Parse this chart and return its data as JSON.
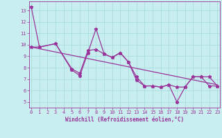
{
  "title": "",
  "xlabel": "Windchill (Refroidissement éolien,°C)",
  "bg_color": "#c8eef0",
  "grid_color": "#aadddd",
  "line_color": "#993399",
  "x_ticks": [
    0,
    1,
    2,
    3,
    4,
    5,
    6,
    7,
    8,
    9,
    10,
    11,
    12,
    13,
    14,
    15,
    16,
    17,
    18,
    19,
    20,
    21,
    22,
    23
  ],
  "y_ticks": [
    5,
    6,
    7,
    8,
    9,
    10,
    11,
    12,
    13
  ],
  "xlim": [
    -0.3,
    23.3
  ],
  "ylim": [
    4.5,
    13.8
  ],
  "line1_x": [
    0,
    1,
    3,
    5,
    6,
    7,
    8,
    9,
    10,
    11,
    12,
    13,
    14,
    15,
    16,
    17,
    18,
    19,
    20,
    21,
    22,
    23
  ],
  "line1_y": [
    13.3,
    9.8,
    10.1,
    7.8,
    7.3,
    9.3,
    11.4,
    9.2,
    8.9,
    9.3,
    8.5,
    6.9,
    6.4,
    6.4,
    6.3,
    6.5,
    5.0,
    6.3,
    7.2,
    7.2,
    6.4,
    6.4
  ],
  "line2_x": [
    0,
    1,
    3,
    5,
    6,
    7,
    8,
    9,
    10,
    11,
    12,
    13,
    14,
    15,
    16,
    17,
    18,
    19,
    20,
    21,
    22,
    23
  ],
  "line2_y": [
    9.8,
    9.8,
    10.1,
    7.9,
    7.5,
    9.5,
    9.6,
    9.2,
    8.9,
    9.3,
    8.5,
    7.2,
    6.4,
    6.4,
    6.3,
    6.5,
    6.3,
    6.3,
    7.2,
    7.2,
    7.2,
    6.4
  ],
  "trend_x": [
    0,
    23
  ],
  "trend_y": [
    9.8,
    6.5
  ],
  "marker": "*",
  "markersize": 3.5,
  "linewidth": 0.9,
  "font_color": "#993399",
  "tick_fontsize": 5.0,
  "label_fontsize": 5.5
}
